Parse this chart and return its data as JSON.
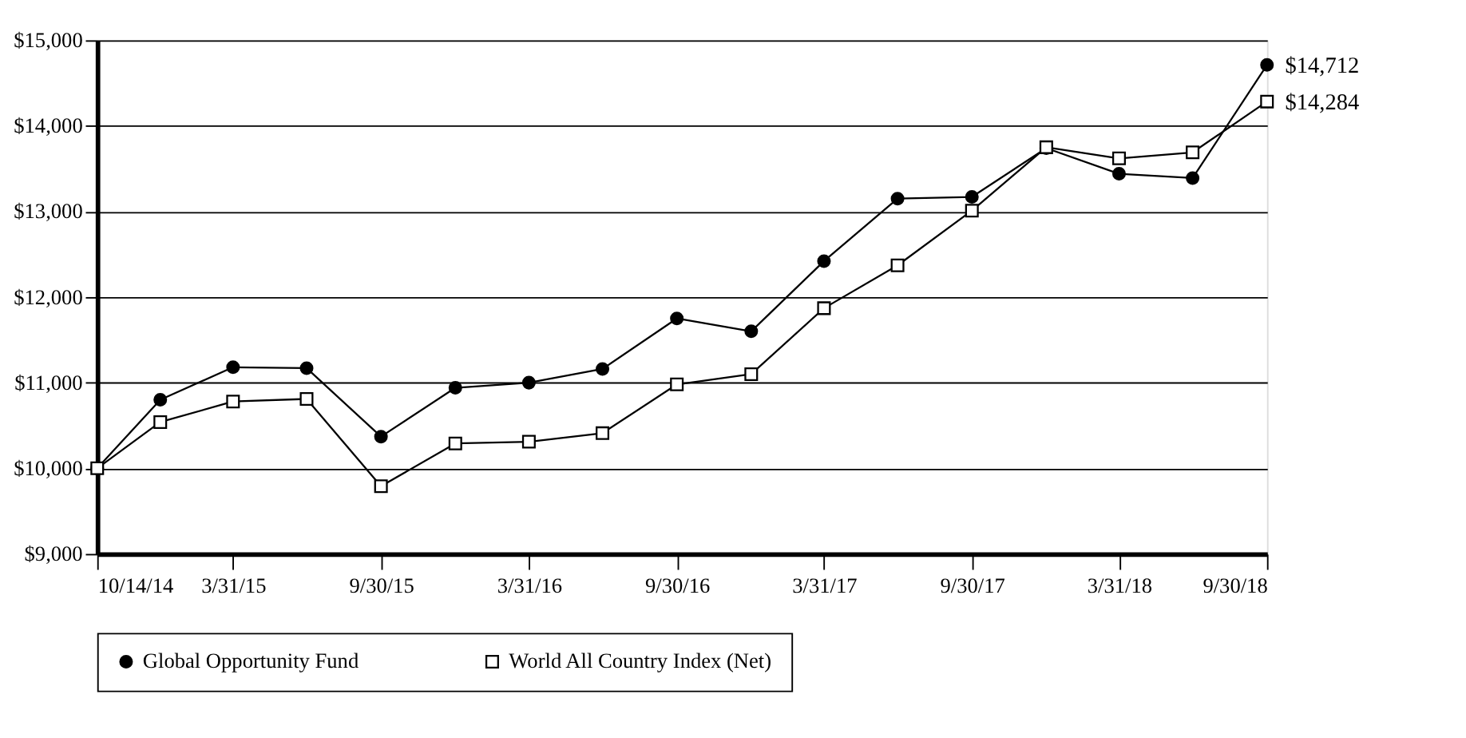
{
  "chart_data": {
    "type": "line",
    "x": [
      "2014-10-14",
      "2014-12-31",
      "2015-03-31",
      "2015-06-30",
      "2015-09-30",
      "2015-12-31",
      "2016-03-31",
      "2016-06-30",
      "2016-09-30",
      "2016-12-31",
      "2017-03-31",
      "2017-06-30",
      "2017-09-30",
      "2017-12-31",
      "2018-03-31",
      "2018-06-30",
      "2018-09-30"
    ],
    "series": [
      {
        "name": "Global Opportunity Fund",
        "color": "#000000",
        "marker": "circle",
        "values": [
          10000,
          10800,
          11180,
          11170,
          10370,
          10940,
          11000,
          11160,
          11750,
          11600,
          12420,
          13150,
          13170,
          13740,
          13440,
          13390,
          14712
        ],
        "value_labels": [
          null,
          null,
          null,
          null,
          null,
          null,
          null,
          null,
          null,
          null,
          null,
          null,
          null,
          null,
          null,
          null,
          "$14,712"
        ]
      },
      {
        "name": "World All Country Index (Net)",
        "color": "#000000",
        "marker": "square",
        "values": [
          10000,
          10540,
          10780,
          10810,
          9790,
          10290,
          10310,
          10410,
          10980,
          11100,
          11870,
          12370,
          13010,
          13750,
          13620,
          13690,
          14284
        ],
        "value_labels": [
          null,
          null,
          null,
          null,
          null,
          null,
          null,
          null,
          null,
          null,
          null,
          null,
          null,
          null,
          null,
          null,
          "$14,284"
        ]
      }
    ],
    "xlim": [
      "2014-10-14",
      "2018-09-30"
    ],
    "xticks": [
      {
        "value": "2014-10-14",
        "label": "10/14/14"
      },
      {
        "value": "2015-03-31",
        "label": "3/31/15"
      },
      {
        "value": "2015-09-30",
        "label": "9/30/15"
      },
      {
        "value": "2016-03-31",
        "label": "3/31/16"
      },
      {
        "value": "2016-09-30",
        "label": "9/30/16"
      },
      {
        "value": "2017-03-31",
        "label": "3/31/17"
      },
      {
        "value": "2017-09-30",
        "label": "9/30/17"
      },
      {
        "value": "2018-03-31",
        "label": "3/31/18"
      },
      {
        "value": "2018-09-30",
        "label": "9/30/18"
      }
    ],
    "ylim": [
      9000,
      15000
    ],
    "yticks": [
      {
        "value": 9000,
        "label": "$9,000"
      },
      {
        "value": 10000,
        "label": "$10,000"
      },
      {
        "value": 11000,
        "label": "$11,000"
      },
      {
        "value": 12000,
        "label": "$12,000"
      },
      {
        "value": 13000,
        "label": "$13,000"
      },
      {
        "value": 14000,
        "label": "$14,000"
      },
      {
        "value": 15000,
        "label": "$15,000"
      }
    ],
    "grid": "y",
    "legend": "bottom"
  }
}
